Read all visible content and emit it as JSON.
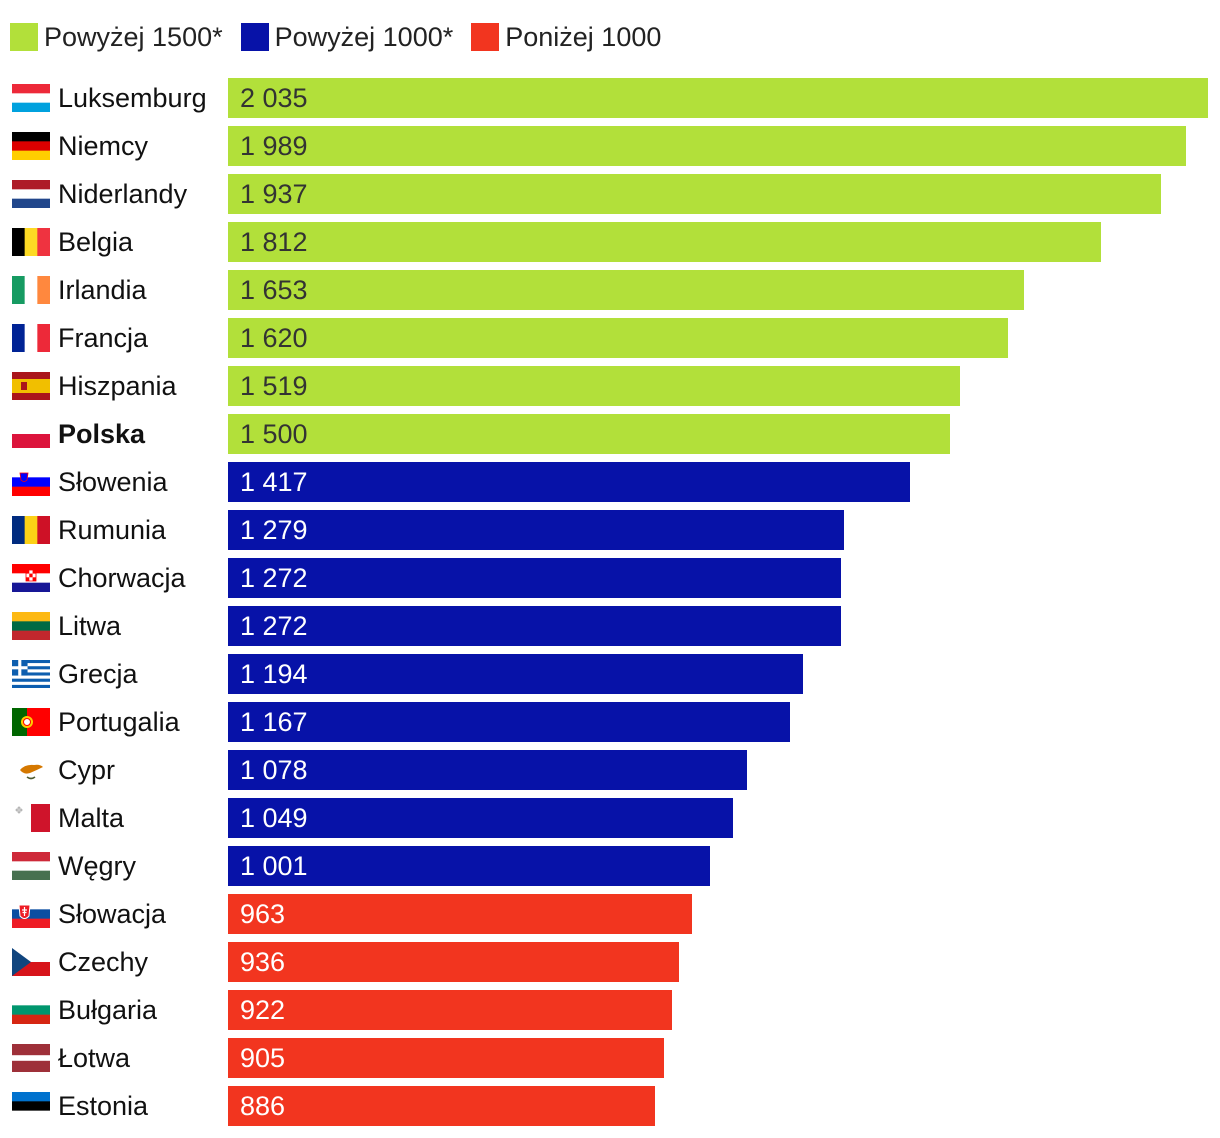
{
  "legend": [
    {
      "label": "Powyżej 1500*",
      "color": "#b2e03a"
    },
    {
      "label": "Powyżej 1000*",
      "color": "#0712a8"
    },
    {
      "label": "Poniżej 1000",
      "color": "#f2351f"
    }
  ],
  "chart_data": {
    "type": "bar",
    "orientation": "horizontal",
    "title": "",
    "xlabel": "",
    "ylabel": "",
    "xlim": [
      0,
      2035
    ],
    "grid": false,
    "legend_position": "top-left",
    "categories": [
      "Luksemburg",
      "Niemcy",
      "Niderlandy",
      "Belgia",
      "Irlandia",
      "Francja",
      "Hiszpania",
      "Polska",
      "Słowenia",
      "Rumunia",
      "Chorwacja",
      "Litwa",
      "Grecja",
      "Portugalia",
      "Cypr",
      "Malta",
      "Węgry",
      "Słowacja",
      "Czechy",
      "Bułgaria",
      "Łotwa",
      "Estonia"
    ],
    "values": [
      2035,
      1989,
      1937,
      1812,
      1653,
      1620,
      1519,
      1500,
      1417,
      1279,
      1272,
      1272,
      1194,
      1167,
      1078,
      1049,
      1001,
      963,
      936,
      922,
      905,
      886
    ],
    "value_labels": [
      "2 035",
      "1 989",
      "1 937",
      "1 812",
      "1 653",
      "1 620",
      "1 519",
      "1 500",
      "1 417",
      "1 279",
      "1 272",
      "1 272",
      "1 194",
      "1 167",
      "1 078",
      "1 049",
      "1 001",
      "963",
      "936",
      "922",
      "905",
      "886"
    ],
    "groups": [
      0,
      0,
      0,
      0,
      0,
      0,
      0,
      0,
      1,
      1,
      1,
      1,
      1,
      1,
      1,
      1,
      1,
      2,
      2,
      2,
      2,
      2
    ],
    "highlight": [
      "Polska"
    ],
    "flags": [
      "luxembourg-flag",
      "germany-flag",
      "netherlands-flag",
      "belgium-flag",
      "ireland-flag",
      "france-flag",
      "spain-flag",
      "poland-flag",
      "slovenia-flag",
      "romania-flag",
      "croatia-flag",
      "lithuania-flag",
      "greece-flag",
      "portugal-flag",
      "cyprus-flag",
      "malta-flag",
      "hungary-flag",
      "slovakia-flag",
      "czechia-flag",
      "bulgaria-flag",
      "latvia-flag",
      "estonia-flag"
    ],
    "value_text_colors": [
      "#333333",
      "#ffffff",
      "#ffffff"
    ]
  }
}
